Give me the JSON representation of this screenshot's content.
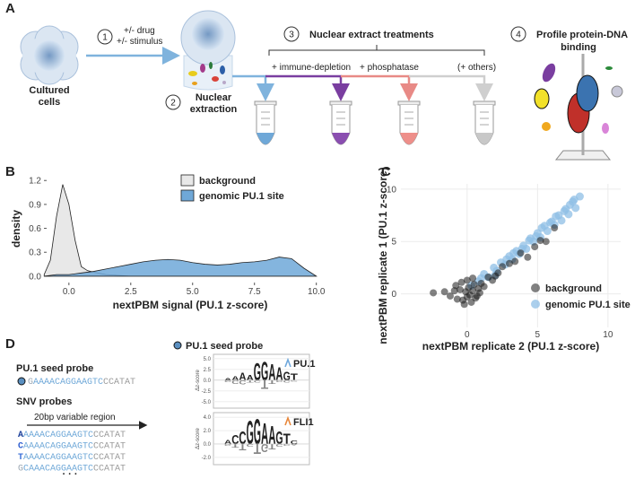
{
  "panel_a": {
    "label": "A",
    "step_1": "1",
    "stimulus_lines": [
      "+/- drug",
      "+/- stimulus"
    ],
    "cells_label": [
      "Cultured",
      "cells"
    ],
    "step_2": "2",
    "extraction_label": [
      "Nuclear",
      "extraction"
    ],
    "step_3": "3",
    "treatments_title": "Nuclear extract treatments",
    "treatments": [
      "+ immune-depletion",
      "+ phosphatase",
      "(+ others)"
    ],
    "step_4": "4",
    "profile_label": [
      "Profile protein-DNA",
      "binding"
    ]
  },
  "chart_data": [
    {
      "type": "density",
      "label": "B",
      "x_label": "nextPBM signal (PU.1 z-score)",
      "y_label": "density",
      "x": [
        -1,
        -0.75,
        -0.5,
        -0.25,
        0,
        0.25,
        0.5,
        0.75,
        1,
        1.5,
        2,
        2.5,
        3,
        3.5,
        4,
        4.5,
        5,
        5.5,
        6,
        6.5,
        7,
        7.5,
        8,
        8.5,
        9,
        9.5,
        10
      ],
      "series": [
        {
          "name": "background",
          "color": "#e8e8e8",
          "values": [
            0.02,
            0.2,
            0.75,
            1.15,
            0.9,
            0.45,
            0.12,
            0.07,
            0.05,
            0.02,
            0.01,
            0,
            0,
            0,
            0,
            0,
            0,
            0,
            0,
            0,
            0,
            0,
            0,
            0,
            0,
            0,
            0
          ]
        },
        {
          "name": "genomic PU.1 site",
          "color": "#6fa8d8",
          "values": [
            0,
            0.01,
            0.02,
            0.02,
            0.02,
            0.03,
            0.04,
            0.05,
            0.06,
            0.09,
            0.12,
            0.15,
            0.18,
            0.2,
            0.21,
            0.2,
            0.17,
            0.15,
            0.14,
            0.15,
            0.17,
            0.18,
            0.2,
            0.24,
            0.22,
            0.1,
            0
          ]
        }
      ],
      "xlim": [
        -0.9,
        10.7
      ],
      "ylim": [
        -0.08,
        1.27
      ],
      "xticks": [
        {
          "value": 0,
          "label": "0.0"
        },
        2.5,
        {
          "value": 5,
          "label": "5.0"
        },
        7.5,
        {
          "value": 10,
          "label": "10.0"
        }
      ],
      "yticks": [
        {
          "value": 0,
          "label": "0.0"
        },
        0.3,
        0.6,
        0.9,
        1.2
      ],
      "legend": "top"
    },
    {
      "type": "scatter",
      "label": "C",
      "x_label": "nextPBM replicate 2 (PU.1 z-score)",
      "y_label": "nextPBM replicate 1 (PU.1 z-score)",
      "series": [
        {
          "name": "genomic PU.1 site",
          "color": "#8fbfe6",
          "x": [
            0.3,
            0.8,
            1.2,
            1.5,
            1.9,
            2.1,
            2.4,
            2.7,
            3.0,
            3.2,
            3.5,
            3.7,
            4.0,
            4.2,
            4.5,
            4.7,
            5.0,
            5.2,
            5.5,
            5.7,
            6.0,
            6.2,
            6.5,
            6.7,
            7.0,
            7.2,
            7.5,
            7.7,
            8.0,
            2.0,
            3.3,
            4.4,
            5.3,
            6.3,
            7.3,
            1.0,
            2.8,
            3.9,
            4.9,
            5.9,
            6.9,
            7.6
          ],
          "values": [
            0.8,
            1.2,
            1.9,
            1.6,
            2.5,
            2.2,
            3.0,
            2.8,
            3.6,
            3.3,
            4.1,
            3.8,
            4.6,
            4.3,
            5.3,
            5.0,
            5.8,
            5.4,
            6.5,
            6.0,
            6.9,
            6.6,
            7.5,
            7.0,
            8.1,
            7.6,
            8.8,
            8.2,
            9.3,
            1.8,
            3.9,
            5.1,
            6.3,
            7.4,
            8.5,
            1.5,
            3.3,
            4.3,
            5.5,
            6.8,
            7.9,
            9.0
          ]
        },
        {
          "name": "background",
          "color": "#1a1a1a",
          "x": [
            -2.4,
            -1.6,
            -1.2,
            -0.9,
            -0.7,
            -0.5,
            -0.3,
            -0.1,
            0,
            0.1,
            0.2,
            0.4,
            0.6,
            0.8,
            1,
            1.2,
            -0.4,
            0.3,
            0.5,
            -0.2,
            0.9,
            1.5,
            2,
            2.5,
            3,
            3.4,
            3.8,
            4.3,
            4.8,
            5.2,
            5.6,
            6.2,
            1.8,
            2.2,
            0.7,
            -0.8,
            0.0,
            0.4
          ],
          "values": [
            0.1,
            0.2,
            -0.2,
            0.3,
            -0.5,
            0.4,
            -0.6,
            0.2,
            -0.3,
            0.6,
            -0.1,
            0.3,
            -0.4,
            0.5,
            1.0,
            0.7,
            1.1,
            -0.8,
            0.9,
            -1,
            0.1,
            1.6,
            1.7,
            2.6,
            2.9,
            3.1,
            3.9,
            3.5,
            4.5,
            5.1,
            5.0,
            6.3,
            1.3,
            2.0,
            -0.2,
            0.8,
            1.3,
            1.5
          ]
        }
      ],
      "legend_order": [
        1,
        0
      ],
      "xlim": [
        -4.7,
        10.9
      ],
      "ylim": [
        -3.2,
        10.5
      ],
      "xticks": [
        0,
        5,
        10
      ],
      "yticks": [
        0,
        5,
        10
      ],
      "grid": true,
      "legend": "bottom-right"
    }
  ],
  "panel_d": {
    "label": "D",
    "seed_title": "PU.1 seed probe",
    "seed_sequence": [
      "G",
      "AAAACAGGAAGTC",
      "CCATAT"
    ],
    "snv_title": "SNV probes",
    "region_label": "20bp variable region",
    "snv_sequences": [
      [
        "A",
        "AAAACAGGAAGTC",
        "CCATAT"
      ],
      [
        "C",
        "AAAACAGGAAGTC",
        "CCATAT"
      ],
      [
        "T",
        "AAAACAGGAAGTC",
        "CCATAT"
      ],
      [
        "G",
        "CAAACAGGAAGTC",
        "CCATAT"
      ]
    ],
    "ellipsis": "· · ·",
    "logo_title": "PU.1 seed probe",
    "logo_y_label": "Δz-score",
    "logos": [
      {
        "name": "PU.1",
        "color": "#6fa8dc",
        "ylim": [
          -6.5,
          6
        ],
        "yticks": [
          {
            "value": 5,
            "label": "5.0"
          },
          2.5,
          {
            "value": 0,
            "label": "0.0"
          },
          -2.5,
          {
            "value": -5,
            "label": "-5.0"
          }
        ],
        "top": [
          "A",
          "A",
          "A",
          "A",
          "G",
          "G",
          "A",
          "A",
          "G",
          "T"
        ],
        "top_heights": [
          0.6,
          1.0,
          1.8,
          1.2,
          4.2,
          4.4,
          3.8,
          3.2,
          2.0,
          1.6
        ],
        "bottom": [
          "C",
          "C",
          "C",
          "T",
          "C",
          "T",
          "T",
          "C",
          "C",
          "C"
        ],
        "bottom_heights": [
          -0.4,
          -0.8,
          -1.0,
          -0.5,
          -0.6,
          -2.0,
          -0.8,
          -0.4,
          -0.5,
          -0.3
        ]
      },
      {
        "name": "FLI1",
        "color": "#e8873a",
        "ylim": [
          -3.1,
          4.7
        ],
        "yticks": [
          {
            "value": 4,
            "label": "4.0"
          },
          {
            "value": 2,
            "label": "2.0"
          },
          {
            "value": 0,
            "label": "0.0"
          },
          {
            "value": -2,
            "label": "-2.0"
          }
        ],
        "top": [
          "A",
          "C",
          "C",
          "G",
          "G",
          "A",
          "A",
          "G",
          "T",
          "C"
        ],
        "top_heights": [
          0.6,
          1.4,
          2.0,
          3.6,
          3.8,
          3.2,
          2.8,
          2.0,
          1.6,
          0.5
        ],
        "bottom": [
          "G",
          "T",
          "T",
          "C",
          "T",
          "G",
          "T",
          "C",
          "C",
          "A"
        ],
        "bottom_heights": [
          -0.3,
          -0.5,
          -1.0,
          -0.4,
          -1.5,
          -1.2,
          -0.8,
          -0.4,
          -0.3,
          -0.2
        ]
      }
    ],
    "base_colors": {
      "A": "#2e9e3e",
      "C": "#2f5fd0",
      "G": "#f0a81e",
      "T": "#e0332f"
    }
  }
}
